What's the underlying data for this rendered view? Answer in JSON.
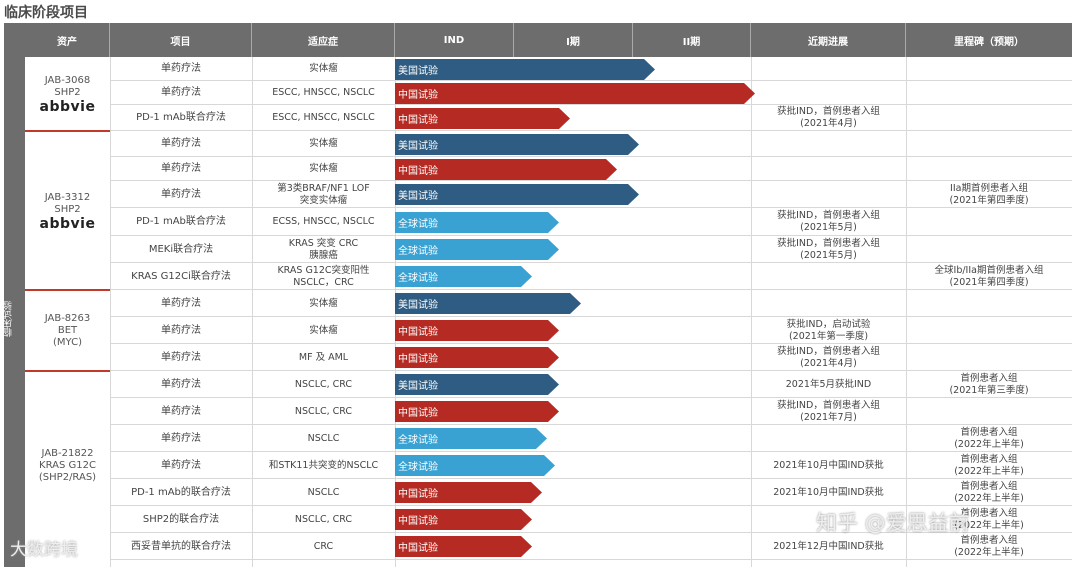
{
  "page_title": "临床阶段项目",
  "side_label": "临床试验",
  "headers": {
    "asset": "资产",
    "project": "项目",
    "indication": "适应症",
    "ind": "IND",
    "phase1": "I期",
    "phase2": "II期",
    "progress": "近期进展",
    "milestone": "里程碑（预期）"
  },
  "assets": [
    {
      "name": [
        "JAB-3068",
        "SHP2"
      ],
      "logo": "abbvie"
    },
    {
      "name": [
        "JAB-3312",
        "SHP2"
      ],
      "logo": "abbvie"
    },
    {
      "name": [
        "JAB-8263",
        "BET",
        "(MYC)"
      ],
      "logo": ""
    },
    {
      "name": [
        "JAB-21822",
        "KRAS G12C",
        "(SHP2/RAS)"
      ],
      "logo": ""
    }
  ],
  "rows": [
    {
      "project": "单药疗法",
      "indication": "实体瘤",
      "trial": "美国试验",
      "kind": "us",
      "progress": "",
      "milestone": ""
    },
    {
      "project": "单药疗法",
      "indication": "ESCC, HNSCC, NSCLC",
      "trial": "中国试验",
      "kind": "cn",
      "progress": "",
      "milestone": ""
    },
    {
      "project": "PD-1 mAb联合疗法",
      "indication": "ESCC, HNSCC, NSCLC",
      "trial": "中国试验",
      "kind": "cn",
      "progress": "获批IND，首例患者入组\n(2021年4月)",
      "milestone": ""
    },
    {
      "project": "单药疗法",
      "indication": "实体瘤",
      "trial": "美国试验",
      "kind": "us",
      "progress": "",
      "milestone": ""
    },
    {
      "project": "单药疗法",
      "indication": "实体瘤",
      "trial": "中国试验",
      "kind": "cn",
      "progress": "",
      "milestone": ""
    },
    {
      "project": "单药疗法",
      "indication": "第3类BRAF/NF1 LOF\n突变实体瘤",
      "trial": "美国试验",
      "kind": "us",
      "progress": "",
      "milestone": "IIa期首例患者入组\n(2021年第四季度)"
    },
    {
      "project": "PD-1 mAb联合疗法",
      "indication": "ECSS, HNSCC, NSCLC",
      "trial": "全球试验",
      "kind": "gl",
      "progress": "获批IND，首例患者入组\n(2021年5月)",
      "milestone": ""
    },
    {
      "project": "MEKi联合疗法",
      "indication": "KRAS 突变  CRC\n胰腺癌",
      "trial": "全球试验",
      "kind": "gl",
      "progress": "获批IND，首例患者入组\n(2021年5月)",
      "milestone": ""
    },
    {
      "project": "KRAS G12Ci联合疗法",
      "indication": "KRAS G12C突变阳性\nNSCLC，CRC",
      "trial": "全球试验",
      "kind": "gl",
      "progress": "",
      "milestone": "全球Ib/IIa期首例患者入组\n(2021年第四季度)"
    },
    {
      "project": "单药疗法",
      "indication": "实体瘤",
      "trial": "美国试验",
      "kind": "us",
      "progress": "",
      "milestone": ""
    },
    {
      "project": "单药疗法",
      "indication": "实体瘤",
      "trial": "中国试验",
      "kind": "cn",
      "progress": "获批IND，启动试验\n(2021年第一季度)",
      "milestone": ""
    },
    {
      "project": "单药疗法",
      "indication": "MF 及 AML",
      "trial": "中国试验",
      "kind": "cn",
      "progress": "获批IND，首例患者入组\n(2021年4月)",
      "milestone": ""
    },
    {
      "project": "单药疗法",
      "indication": "NSCLC, CRC",
      "trial": "美国试验",
      "kind": "us",
      "progress": "2021年5月获批IND",
      "milestone": "首例患者入组\n(2021年第三季度)"
    },
    {
      "project": "单药疗法",
      "indication": "NSCLC, CRC",
      "trial": "中国试验",
      "kind": "cn",
      "progress": "获批IND，首例患者入组\n(2021年7月)",
      "milestone": ""
    },
    {
      "project": "单药疗法",
      "indication": "NSCLC",
      "trial": "全球试验",
      "kind": "gl",
      "progress": "",
      "milestone": "首例患者入组\n(2022年上半年)"
    },
    {
      "project": "单药疗法",
      "indication": "和STK11共突变的NSCLC",
      "trial": "全球试验",
      "kind": "gl",
      "progress": "2021年10月中国IND获批",
      "milestone": "首例患者入组\n(2022年上半年)"
    },
    {
      "project": "PD-1 mAb的联合疗法",
      "indication": "NSCLC",
      "trial": "中国试验",
      "kind": "cn",
      "progress": "2021年10月中国IND获批",
      "milestone": "首例患者入组\n(2022年上半年)"
    },
    {
      "project": "SHP2的联合疗法",
      "indication": "NSCLC, CRC",
      "trial": "中国试验",
      "kind": "cn",
      "progress": "",
      "milestone": "首例患者入组\n(2022年上半年)"
    },
    {
      "project": "西妥昔单抗的联合疗法",
      "indication": "CRC",
      "trial": "中国试验",
      "kind": "cn",
      "progress": "2021年12月中国IND获批",
      "milestone": "首例患者入组\n(2022年上半年)"
    }
  ],
  "watermarks": {
    "left": "大数跨境",
    "right": "知乎 @爱思益前"
  }
}
